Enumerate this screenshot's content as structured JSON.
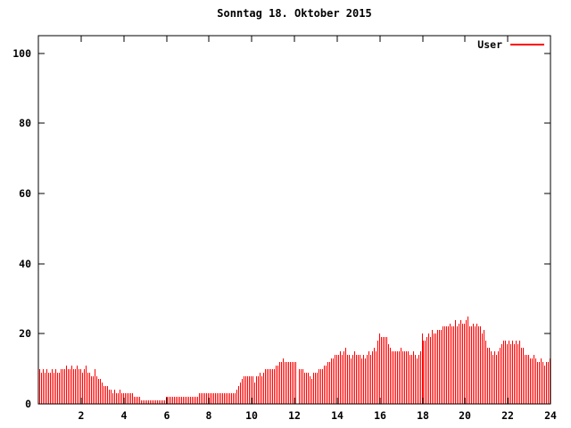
{
  "title": "Sonntag 18. Oktober 2015",
  "chart_data": {
    "type": "bar",
    "title": "Sonntag 18. Oktober 2015",
    "xlabel": "",
    "ylabel": "",
    "xlim": [
      0,
      24
    ],
    "ylim": [
      0,
      105
    ],
    "xticks": [
      2,
      4,
      6,
      8,
      10,
      12,
      14,
      16,
      18,
      20,
      22,
      24
    ],
    "yticks": [
      0,
      20,
      40,
      60,
      80,
      100
    ],
    "grid": "off",
    "legend_position": "top-right",
    "sample_interval_minutes": 5,
    "x_unit": "hour-of-day",
    "background_color": "#ffffff",
    "border_color": "#000000",
    "series": [
      {
        "name": "User",
        "color": "#ff0000",
        "style": "impulses",
        "values": [
          10,
          9,
          10,
          9,
          10,
          9,
          9,
          10,
          9,
          10,
          9,
          9,
          10,
          10,
          10,
          11,
          10,
          10,
          11,
          10,
          10,
          11,
          10,
          10,
          9,
          10,
          11,
          9,
          9,
          8,
          8,
          10,
          8,
          7,
          7,
          6,
          5,
          5,
          5,
          4,
          4,
          3,
          4,
          3,
          3,
          4,
          3,
          3,
          3,
          3,
          3,
          3,
          3,
          2,
          2,
          2,
          2,
          1,
          1,
          1,
          1,
          1,
          1,
          1,
          1,
          1,
          1,
          1,
          1,
          1,
          1,
          2,
          2,
          2,
          2,
          2,
          2,
          2,
          2,
          2,
          2,
          2,
          2,
          2,
          2,
          2,
          2,
          2,
          2,
          2,
          3,
          3,
          3,
          3,
          3,
          3,
          3,
          3,
          3,
          3,
          3,
          3,
          3,
          3,
          3,
          3,
          3,
          3,
          3,
          3,
          3,
          4,
          5,
          6,
          7,
          8,
          8,
          8,
          8,
          8,
          8,
          6,
          8,
          8,
          9,
          8,
          9,
          10,
          10,
          10,
          10,
          10,
          10,
          11,
          11,
          12,
          12,
          13,
          12,
          12,
          12,
          12,
          12,
          12,
          12,
          0,
          10,
          10,
          10,
          9,
          9,
          9,
          8,
          7,
          9,
          9,
          9,
          10,
          10,
          10,
          11,
          11,
          12,
          12,
          13,
          13,
          14,
          14,
          14,
          15,
          14,
          15,
          16,
          14,
          14,
          13,
          14,
          15,
          14,
          14,
          14,
          13,
          14,
          13,
          14,
          15,
          14,
          15,
          16,
          15,
          18,
          20,
          19,
          19,
          19,
          19,
          17,
          16,
          15,
          15,
          15,
          15,
          15,
          16,
          15,
          15,
          15,
          15,
          14,
          14,
          15,
          14,
          13,
          14,
          15,
          20,
          18,
          18,
          19,
          20,
          19,
          21,
          20,
          20,
          21,
          21,
          21,
          22,
          22,
          22,
          22,
          23,
          22,
          22,
          24,
          22,
          23,
          24,
          23,
          23,
          24,
          25,
          22,
          22,
          23,
          22,
          23,
          22,
          22,
          20,
          21,
          18,
          16,
          16,
          15,
          14,
          15,
          14,
          15,
          16,
          17,
          18,
          18,
          17,
          18,
          17,
          18,
          17,
          18,
          17,
          18,
          16,
          16,
          14,
          14,
          14,
          13,
          13,
          14,
          13,
          12,
          12,
          13,
          12,
          11,
          12,
          12,
          13
        ]
      }
    ]
  }
}
